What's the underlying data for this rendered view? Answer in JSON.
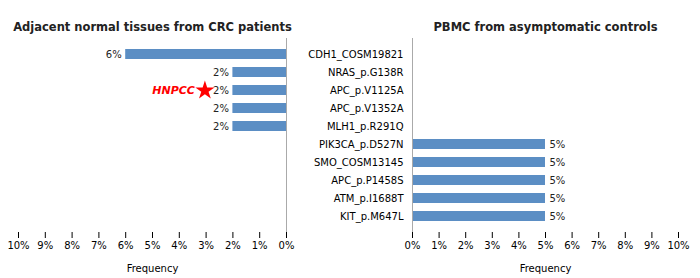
{
  "chart_data": [
    {
      "type": "bar",
      "orientation": "horizontal",
      "title": "Adjacent normal tissues from CRC patients",
      "xlabel": "Frequency",
      "categories": [
        "CDH1_COSM19821",
        "NRAS_p.G138R",
        "APC_p.V1125A",
        "APC_p.V1352A",
        "MLH1_p.R291Q",
        "PIK3CA_p.D527N",
        "SMO_COSM13145",
        "APC_p.P1458S",
        "ATM_p.I1688T",
        "KIT_p.M647L"
      ],
      "values": [
        6,
        2,
        2,
        2,
        2,
        0,
        0,
        0,
        0,
        0
      ],
      "value_labels": [
        "6%",
        "2%",
        "2%",
        "2%",
        "2%",
        null,
        null,
        null,
        null,
        null
      ],
      "data_labels": true,
      "color": "#5b8ec4",
      "xlim": [
        10,
        0
      ],
      "xticks": [
        {
          "value": 0,
          "label": "0%"
        },
        {
          "value": 1,
          "label": "1%"
        },
        {
          "value": 2,
          "label": "2%"
        },
        {
          "value": 3,
          "label": "3%"
        },
        {
          "value": 4,
          "label": "4%"
        },
        {
          "value": 5,
          "label": "5%"
        },
        {
          "value": 6,
          "label": "6%"
        },
        {
          "value": 7,
          "label": "7%"
        },
        {
          "value": 8,
          "label": "8%"
        },
        {
          "value": 9,
          "label": "9%"
        },
        {
          "value": 10,
          "label": "10%"
        }
      ],
      "tick_labels": "x",
      "grid": false,
      "annotations": [
        {
          "text": "HNPCC",
          "category": "APC_p.V1125A",
          "color": "red",
          "marker": "star"
        }
      ]
    },
    {
      "type": "bar",
      "orientation": "horizontal",
      "title": "PBMC from asymptomatic controls",
      "xlabel": "Frequency",
      "categories": [
        "CDH1_COSM19821",
        "NRAS_p.G138R",
        "APC_p.V1125A",
        "APC_p.V1352A",
        "MLH1_p.R291Q",
        "PIK3CA_p.D527N",
        "SMO_COSM13145",
        "APC_p.P1458S",
        "ATM_p.I1688T",
        "KIT_p.M647L"
      ],
      "values": [
        0,
        0,
        0,
        0,
        0,
        5,
        5,
        5,
        5,
        5
      ],
      "value_labels": [
        null,
        null,
        null,
        null,
        null,
        "5%",
        "5%",
        "5%",
        "5%",
        "5%"
      ],
      "data_labels": true,
      "color": "#5b8ec4",
      "xlim": [
        0,
        10
      ],
      "xticks": [
        {
          "value": 0,
          "label": "0%"
        },
        {
          "value": 1,
          "label": "1%"
        },
        {
          "value": 2,
          "label": "2%"
        },
        {
          "value": 3,
          "label": "3%"
        },
        {
          "value": 4,
          "label": "4%"
        },
        {
          "value": 5,
          "label": "5%"
        },
        {
          "value": 6,
          "label": "6%"
        },
        {
          "value": 7,
          "label": "7%"
        },
        {
          "value": 8,
          "label": "8%"
        },
        {
          "value": 9,
          "label": "9%"
        },
        {
          "value": 10,
          "label": "10%"
        }
      ],
      "grid": false
    }
  ]
}
